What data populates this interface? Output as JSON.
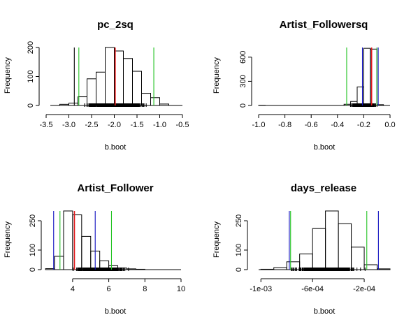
{
  "colors": {
    "red": "#e31a1c",
    "green": "#22c322",
    "blue": "#1010c0",
    "black": "#000000"
  },
  "chart_data": [
    {
      "type": "histogram",
      "title": "pc_2sq",
      "xlabel": "b.boot",
      "ylabel": "Frequency",
      "xticks": [
        "-3.5",
        "-3.0",
        "-2.5",
        "-2.0",
        "-1.5",
        "-1.0",
        "-0.5"
      ],
      "yticks": [
        "0",
        "100",
        "200"
      ],
      "xlim": [
        -3.5,
        -0.5
      ],
      "ylim": [
        0,
        200
      ],
      "bins": [
        {
          "x0": -3.2,
          "x1": -3.0,
          "count": 4
        },
        {
          "x0": -3.0,
          "x1": -2.8,
          "count": 8
        },
        {
          "x0": -2.8,
          "x1": -2.6,
          "count": 30
        },
        {
          "x0": -2.6,
          "x1": -2.4,
          "count": 92
        },
        {
          "x0": -2.4,
          "x1": -2.2,
          "count": 115
        },
        {
          "x0": -2.2,
          "x1": -2.0,
          "count": 200
        },
        {
          "x0": -2.0,
          "x1": -1.8,
          "count": 188
        },
        {
          "x0": -1.8,
          "x1": -1.6,
          "count": 162
        },
        {
          "x0": -1.6,
          "x1": -1.4,
          "count": 118
        },
        {
          "x0": -1.4,
          "x1": -1.2,
          "count": 42
        },
        {
          "x0": -1.2,
          "x1": -1.0,
          "count": 27
        },
        {
          "x0": -1.0,
          "x1": -0.8,
          "count": 5
        }
      ],
      "lines": [
        {
          "x": -1.98,
          "color": "red"
        },
        {
          "x": -2.78,
          "color": "green"
        },
        {
          "x": -1.13,
          "color": "green"
        },
        {
          "x": -2.88,
          "color": "black"
        }
      ],
      "rug_range": [
        -3.2,
        -0.8
      ]
    },
    {
      "type": "histogram",
      "title": "Artist_Followersq",
      "xlabel": "b.boot",
      "ylabel": "Frequency",
      "xticks": [
        "-1.0",
        "-0.8",
        "-0.6",
        "-0.4",
        "-0.2",
        "0.0"
      ],
      "yticks": [
        "0",
        "300",
        "600"
      ],
      "xlim": [
        -1.0,
        0.0
      ],
      "ylim": [
        0,
        720
      ],
      "bins": [
        {
          "x0": -1.0,
          "x1": -0.95,
          "count": 2
        },
        {
          "x0": -0.35,
          "x1": -0.3,
          "count": 15
        },
        {
          "x0": -0.3,
          "x1": -0.25,
          "count": 50
        },
        {
          "x0": -0.25,
          "x1": -0.2,
          "count": 230
        },
        {
          "x0": -0.2,
          "x1": -0.15,
          "count": 710
        },
        {
          "x0": -0.15,
          "x1": -0.1,
          "count": 700
        },
        {
          "x0": -0.1,
          "x1": -0.05,
          "count": 10
        }
      ],
      "lines": [
        {
          "x": -0.14,
          "color": "red"
        },
        {
          "x": -0.33,
          "color": "green"
        },
        {
          "x": -0.1,
          "color": "green"
        },
        {
          "x": -0.21,
          "color": "blue"
        },
        {
          "x": -0.09,
          "color": "blue"
        }
      ],
      "rug_range": [
        -0.35,
        -0.05
      ]
    },
    {
      "type": "histogram",
      "title": "Artist_Follower",
      "xlabel": "b.boot",
      "ylabel": "Frequency",
      "xticks": [
        "4",
        "6",
        "8",
        "10"
      ],
      "yticks": [
        "0",
        "100",
        "250"
      ],
      "xlim": [
        2.65,
        10.0
      ],
      "ylim": [
        0,
        300
      ],
      "bins": [
        {
          "x0": 2.5,
          "x1": 3.0,
          "count": 5
        },
        {
          "x0": 3.0,
          "x1": 3.5,
          "count": 68
        },
        {
          "x0": 3.5,
          "x1": 4.0,
          "count": 300
        },
        {
          "x0": 4.0,
          "x1": 4.5,
          "count": 280
        },
        {
          "x0": 4.5,
          "x1": 5.0,
          "count": 170
        },
        {
          "x0": 5.0,
          "x1": 5.5,
          "count": 95
        },
        {
          "x0": 5.5,
          "x1": 6.0,
          "count": 45
        },
        {
          "x0": 6.0,
          "x1": 6.5,
          "count": 20
        },
        {
          "x0": 6.5,
          "x1": 7.0,
          "count": 8
        },
        {
          "x0": 7.0,
          "x1": 7.5,
          "count": 4
        },
        {
          "x0": 7.5,
          "x1": 8.0,
          "count": 2
        }
      ],
      "lines": [
        {
          "x": 4.1,
          "color": "red"
        },
        {
          "x": 3.3,
          "color": "green"
        },
        {
          "x": 6.15,
          "color": "green"
        },
        {
          "x": 2.95,
          "color": "blue"
        },
        {
          "x": 5.25,
          "color": "blue"
        }
      ],
      "rug_range": [
        2.9,
        8.0
      ]
    },
    {
      "type": "histogram",
      "title": "days_release",
      "xlabel": "b.boot",
      "ylabel": "Frequency",
      "xticks": [
        "-1e-03",
        "-6e-04",
        "-2e-04"
      ],
      "yticks": [
        "0",
        "100",
        "250"
      ],
      "xlim": [
        -0.00105,
        0.0
      ],
      "ylim": [
        0,
        300
      ],
      "bins": [
        {
          "x0": -0.001,
          "x1": -0.0009,
          "count": 2
        },
        {
          "x0": -0.0009,
          "x1": -0.0008,
          "count": 10
        },
        {
          "x0": -0.0008,
          "x1": -0.0007,
          "count": 40
        },
        {
          "x0": -0.0007,
          "x1": -0.0006,
          "count": 80
        },
        {
          "x0": -0.0006,
          "x1": -0.0005,
          "count": 210
        },
        {
          "x0": -0.0005,
          "x1": -0.0004,
          "count": 300
        },
        {
          "x0": -0.0004,
          "x1": -0.0003,
          "count": 235
        },
        {
          "x0": -0.0003,
          "x1": -0.0002,
          "count": 115
        },
        {
          "x0": -0.0002,
          "x1": -0.0001,
          "count": 25
        },
        {
          "x0": -0.0001,
          "x1": 0.0,
          "count": 4
        }
      ],
      "lines": [
        {
          "x": -0.00077,
          "color": "green"
        },
        {
          "x": -0.00018,
          "color": "green"
        },
        {
          "x": -0.00078,
          "color": "blue"
        },
        {
          "x": -9e-05,
          "color": "blue"
        }
      ],
      "rug_range": [
        -0.00095,
        -5e-05
      ]
    }
  ]
}
